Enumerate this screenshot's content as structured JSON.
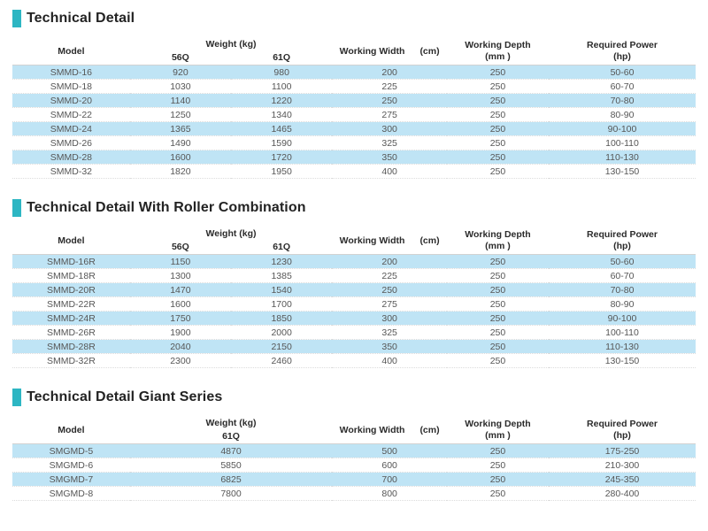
{
  "colors": {
    "accent": "#2db6c3",
    "row_highlight": "#bfe4f5",
    "header_text": "#2b2b2b",
    "body_text": "#565656"
  },
  "sections": [
    {
      "title": "Technical Detail",
      "header": {
        "model": "Model",
        "weight_group": "Weight (kg)",
        "sub_56": "56Q",
        "sub_61": "61Q",
        "width_label": "Working Width",
        "width_unit": "(cm)",
        "depth_label": "Working Depth",
        "depth_unit": "(mm )",
        "power_label": "Required Power",
        "power_unit": "(hp)"
      },
      "rows": [
        [
          "SMMD-16",
          "920",
          "980",
          "200",
          "250",
          "50-60"
        ],
        [
          "SMMD-18",
          "1030",
          "1100",
          "225",
          "250",
          "60-70"
        ],
        [
          "SMMD-20",
          "1140",
          "1220",
          "250",
          "250",
          "70-80"
        ],
        [
          "SMMD-22",
          "1250",
          "1340",
          "275",
          "250",
          "80-90"
        ],
        [
          "SMMD-24",
          "1365",
          "1465",
          "300",
          "250",
          "90-100"
        ],
        [
          "SMMD-26",
          "1490",
          "1590",
          "325",
          "250",
          "100-110"
        ],
        [
          "SMMD-28",
          "1600",
          "1720",
          "350",
          "250",
          "110-130"
        ],
        [
          "SMMD-32",
          "1820",
          "1950",
          "400",
          "250",
          "130-150"
        ]
      ]
    },
    {
      "title": "Technical Detail With Roller Combination",
      "header": {
        "model": "Model",
        "weight_group": "Weight (kg)",
        "sub_56": "56Q",
        "sub_61": "61Q",
        "width_label": "Working Width",
        "width_unit": "(cm)",
        "depth_label": "Working Depth",
        "depth_unit": "(mm )",
        "power_label": "Required Power",
        "power_unit": "(hp)"
      },
      "rows": [
        [
          "SMMD-16R",
          "1150",
          "1230",
          "200",
          "250",
          "50-60"
        ],
        [
          "SMMD-18R",
          "1300",
          "1385",
          "225",
          "250",
          "60-70"
        ],
        [
          "SMMD-20R",
          "1470",
          "1540",
          "250",
          "250",
          "70-80"
        ],
        [
          "SMMD-22R",
          "1600",
          "1700",
          "275",
          "250",
          "80-90"
        ],
        [
          "SMMD-24R",
          "1750",
          "1850",
          "300",
          "250",
          "90-100"
        ],
        [
          "SMMD-26R",
          "1900",
          "2000",
          "325",
          "250",
          "100-110"
        ],
        [
          "SMMD-28R",
          "2040",
          "2150",
          "350",
          "250",
          "110-130"
        ],
        [
          "SMMD-32R",
          "2300",
          "2460",
          "400",
          "250",
          "130-150"
        ]
      ]
    },
    {
      "title": "Technical Detail Giant Series",
      "header": {
        "model": "Model",
        "weight_group": "Weight (kg)",
        "sub_61": "61Q",
        "width_label": "Working Width",
        "width_unit": "(cm)",
        "depth_label": "Working Depth",
        "depth_unit": "(mm )",
        "power_label": "Required Power",
        "power_unit": "(hp)"
      },
      "rows": [
        [
          "SMGMD-5",
          "4870",
          "500",
          "250",
          "175-250"
        ],
        [
          "SMGMD-6",
          "5850",
          "600",
          "250",
          "210-300"
        ],
        [
          "SMGMD-7",
          "6825",
          "700",
          "250",
          "245-350"
        ],
        [
          "SMGMD-8",
          "7800",
          "800",
          "250",
          "280-400"
        ]
      ]
    }
  ]
}
